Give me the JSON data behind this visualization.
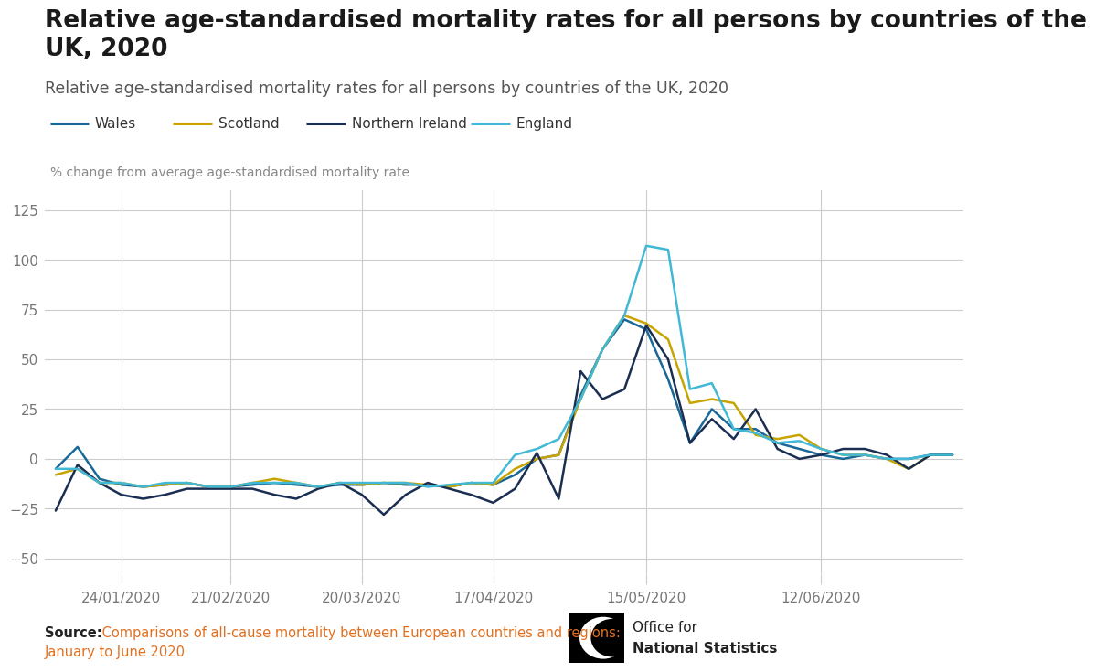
{
  "title": "Relative age-standardised mortality rates for all persons by countries of the\nUK, 2020",
  "subtitle": "Relative age-standardised mortality rates for all persons by countries of the UK, 2020",
  "ylabel": "% change from average age-standardised mortality rate",
  "source_bold": "Source:",
  "source_normal": " Comparisons of all-cause mortality between European countries and regions:",
  "source_line2": "January to June 2020",
  "xtick_labels": [
    "24/01/2020",
    "21/02/2020",
    "20/03/2020",
    "17/04/2020",
    "15/05/2020",
    "12/06/2020"
  ],
  "ytick_values": [
    -50,
    -25,
    0,
    25,
    50,
    75,
    100,
    125
  ],
  "ylim": [
    -58,
    135
  ],
  "colors": {
    "Wales": "#1a6898",
    "Scotland": "#c8a400",
    "Northern Ireland": "#1a2e52",
    "England": "#41b8d5"
  },
  "legend_labels": [
    "Wales",
    "Scotland",
    "Northern Ireland",
    "England"
  ],
  "background_color": "#ffffff",
  "series": {
    "Wales": [
      -5,
      6,
      -10,
      -13,
      -14,
      -13,
      -12,
      -14,
      -14,
      -13,
      -12,
      -13,
      -14,
      -13,
      -13,
      -12,
      -13,
      -13,
      -14,
      -12,
      -13,
      -8,
      0,
      2,
      32,
      55,
      70,
      65,
      40,
      8,
      25,
      15,
      15,
      8,
      5,
      2,
      0,
      2,
      0,
      0,
      2,
      2
    ],
    "Scotland": [
      -8,
      -5,
      -12,
      -12,
      -14,
      -13,
      -12,
      -14,
      -14,
      -12,
      -10,
      -12,
      -14,
      -12,
      -13,
      -12,
      -12,
      -13,
      -14,
      -12,
      -13,
      -5,
      0,
      2,
      30,
      55,
      72,
      68,
      60,
      28,
      30,
      28,
      12,
      10,
      12,
      5,
      2,
      2,
      0,
      -5,
      2,
      2
    ],
    "Northern Ireland": [
      -26,
      -3,
      -12,
      -18,
      -20,
      -18,
      -15,
      -15,
      -15,
      -15,
      -18,
      -20,
      -15,
      -12,
      -18,
      -28,
      -18,
      -12,
      -15,
      -18,
      -22,
      -15,
      3,
      -20,
      44,
      30,
      35,
      67,
      50,
      8,
      20,
      10,
      25,
      5,
      0,
      2,
      5,
      5,
      2,
      -5,
      2,
      2
    ],
    "England": [
      -5,
      -5,
      -12,
      -12,
      -14,
      -12,
      -12,
      -14,
      -14,
      -12,
      -12,
      -12,
      -14,
      -12,
      -12,
      -12,
      -12,
      -14,
      -13,
      -12,
      -12,
      2,
      5,
      10,
      30,
      55,
      72,
      107,
      105,
      35,
      38,
      15,
      13,
      8,
      9,
      5,
      2,
      2,
      0,
      0,
      2,
      2
    ]
  },
  "n_points": 42,
  "xtick_positions": [
    3,
    8,
    14,
    20,
    27,
    35
  ]
}
